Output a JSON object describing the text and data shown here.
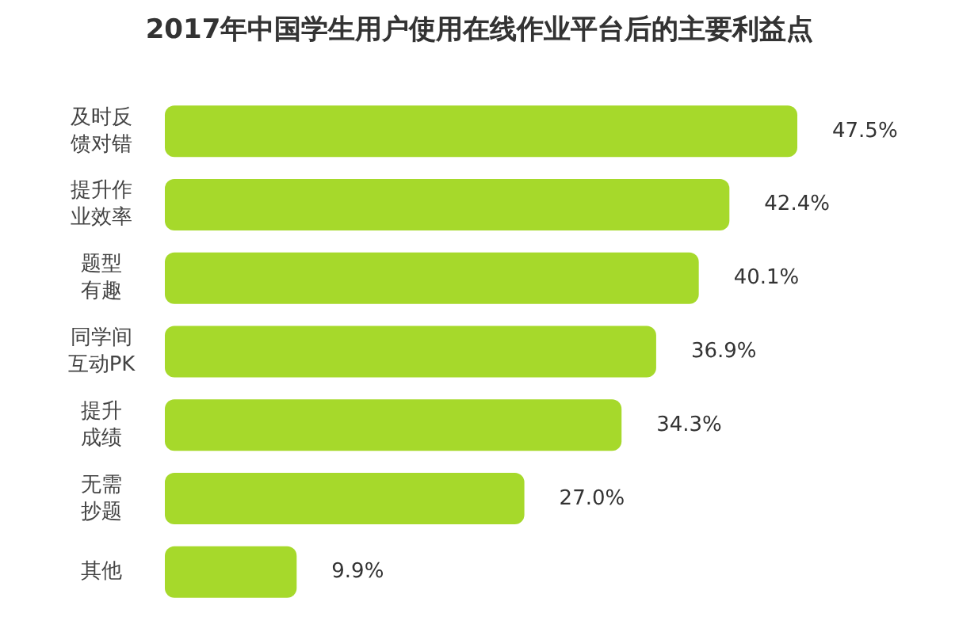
{
  "chart_data": {
    "type": "bar",
    "orientation": "horizontal",
    "title": "2017年中国学生用户使用在线作业平台后的主要利益点",
    "categories": [
      "及时反馈对错",
      "提升作业效率",
      "题型有趣",
      "同学间互动PK",
      "提升成绩",
      "无需抄题",
      "其他"
    ],
    "values": [
      47.5,
      42.4,
      40.1,
      36.9,
      34.3,
      27.0,
      9.9
    ],
    "value_labels": [
      "47.5%",
      "42.4%",
      "40.1%",
      "36.9%",
      "34.3%",
      "27.0%",
      "9.9%"
    ],
    "color": "#a6d92b"
  }
}
